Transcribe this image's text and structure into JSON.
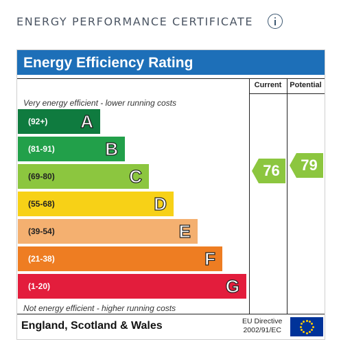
{
  "section": {
    "heading": "ENERGY PERFORMANCE CERTIFICATE"
  },
  "certificate": {
    "title": "Energy Efficiency Rating",
    "col_current": "Current",
    "col_potential": "Potential",
    "note_top": "Very energy efficient - lower running costs",
    "note_bottom": "Not energy efficient - higher running costs",
    "bands": [
      {
        "range": "(92+)",
        "letter": "A",
        "color": "#0f7b3f"
      },
      {
        "range": "(81-91)",
        "letter": "B",
        "color": "#22a04a"
      },
      {
        "range": "(69-80)",
        "letter": "C",
        "color": "#8cc63f"
      },
      {
        "range": "(55-68)",
        "letter": "D",
        "color": "#f7d117"
      },
      {
        "range": "(39-54)",
        "letter": "E",
        "color": "#f4b070"
      },
      {
        "range": "(21-38)",
        "letter": "F",
        "color": "#ee7d22"
      },
      {
        "range": "(1-20)",
        "letter": "G",
        "color": "#e31d3c"
      }
    ],
    "current": {
      "value": "76",
      "color": "#8cc63f"
    },
    "potential": {
      "value": "79",
      "color": "#8cc63f"
    },
    "region": "England, Scotland & Wales",
    "directive_line1": "EU Directive",
    "directive_line2": "2002/91/EC"
  }
}
